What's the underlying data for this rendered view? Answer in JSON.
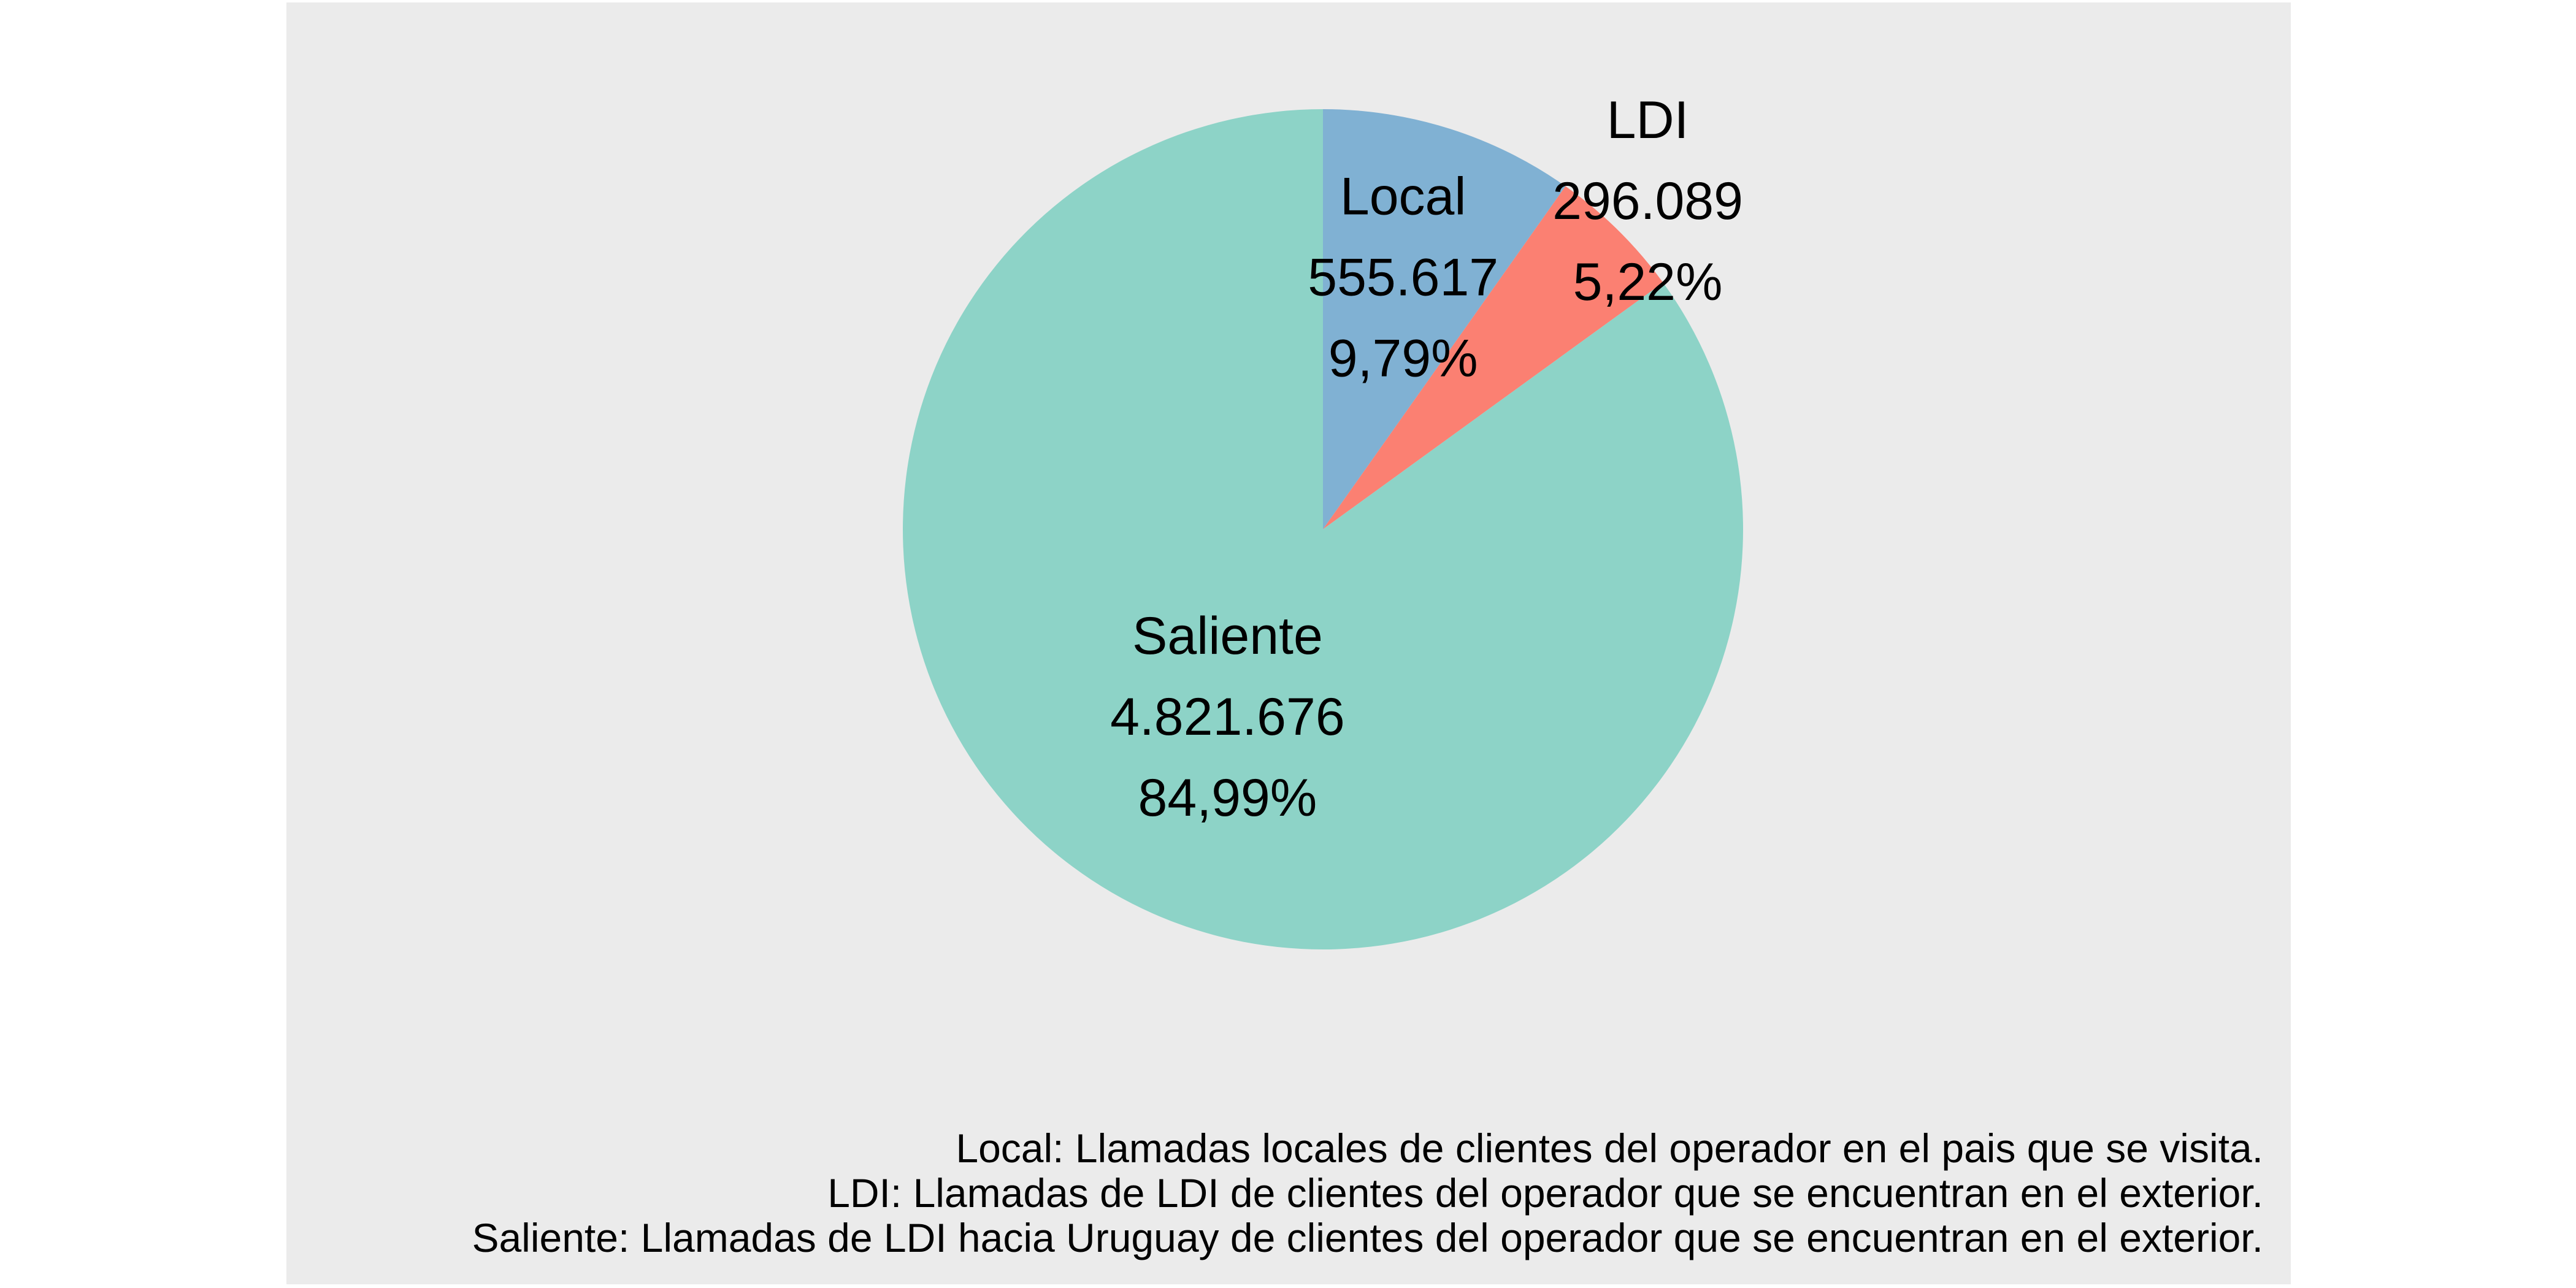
{
  "chart_data": {
    "type": "pie",
    "title": "",
    "slices": [
      {
        "name": "Local",
        "value": 555617,
        "value_label": "555.617",
        "percent": 9.79,
        "percent_label": "9,79%",
        "color": "#80B1D3"
      },
      {
        "name": "LDI",
        "value": 296089,
        "value_label": "296.089",
        "percent": 5.22,
        "percent_label": "5,22%",
        "color": "#FB8072"
      },
      {
        "name": "Saliente",
        "value": 4821676,
        "value_label": "4.821.676",
        "percent": 84.99,
        "percent_label": "84,99%",
        "color": "#8DD3C7"
      }
    ],
    "start_angle": "12 o'clock",
    "direction": "clockwise",
    "panel_background": "#EBEBEB",
    "legend": "none",
    "captions": [
      "Local: Llamadas locales de clientes del operador en el pais que se visita.",
      "LDI: Llamadas de LDI de clientes del operador que se encuentran en el exterior.",
      "Saliente: Llamadas de LDI hacia Uruguay de clientes del operador que se encuentran en el exterior."
    ]
  }
}
